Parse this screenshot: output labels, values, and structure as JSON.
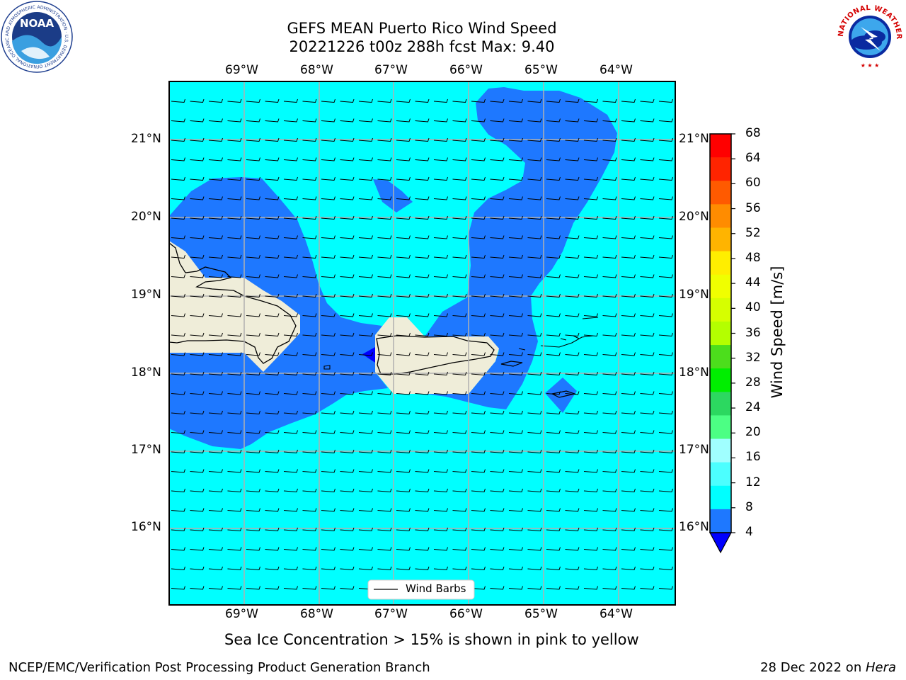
{
  "header": {
    "title_line1": "GEFS MEAN Puerto Rico Wind Speed",
    "title_line2": "20221226 t00z 288h fcst   Max: 9.40"
  },
  "logos": {
    "noaa": {
      "center_text": "NOAA",
      "ring_text": "NATIONAL OCEANIC AND ATMOSPHERIC ADMINISTRATION · U.S. DEPARTMENT OF COMMERCE"
    },
    "nws": {
      "ring_text": "NATIONAL WEATHER SERVICE"
    }
  },
  "map": {
    "lon_labels": [
      "69°W",
      "68°W",
      "67°W",
      "66°W",
      "65°W",
      "64°W"
    ],
    "lat_labels": [
      "21°N",
      "20°N",
      "19°N",
      "18°N",
      "17°N",
      "16°N"
    ],
    "legend_label": "Wind Barbs",
    "colors": {
      "ocean_8_12": "#00ffff",
      "wind_4_8": "#1e78ff",
      "wind_below_4": "#0000ff",
      "land": "#efedd9",
      "grid": "#b0b0b0"
    }
  },
  "colorbar": {
    "label": "Wind Speed [m/s]",
    "tick_labels": [
      "68",
      "64",
      "60",
      "56",
      "52",
      "48",
      "44",
      "40",
      "36",
      "32",
      "28",
      "24",
      "20",
      "16",
      "12",
      "8",
      "4"
    ],
    "bins": [
      {
        "range": "64-68",
        "color": "#ff0000"
      },
      {
        "range": "60-64",
        "color": "#ff2400"
      },
      {
        "range": "56-60",
        "color": "#ff5a00"
      },
      {
        "range": "52-56",
        "color": "#ff8c00"
      },
      {
        "range": "48-52",
        "color": "#ffb400"
      },
      {
        "range": "44-48",
        "color": "#ffee00"
      },
      {
        "range": "40-44",
        "color": "#f0ff00"
      },
      {
        "range": "36-40",
        "color": "#d6ff00"
      },
      {
        "range": "32-36",
        "color": "#b4ff00"
      },
      {
        "range": "28-32",
        "color": "#4cde1c"
      },
      {
        "range": "24-28",
        "color": "#00ee00"
      },
      {
        "range": "20-24",
        "color": "#2cd860"
      },
      {
        "range": "16-20",
        "color": "#4cff84"
      },
      {
        "range": "12-16",
        "color": "#a0ffff"
      },
      {
        "range": "8-12",
        "color": "#4cffff"
      },
      {
        "range": "4-8",
        "color": "#00ffff"
      },
      {
        "range": "0-4",
        "color": "#1e78ff"
      }
    ],
    "extend_min_color": "#0000ff"
  },
  "caption": "Sea Ice Concentration > 15% is shown in pink to yellow",
  "footer": {
    "left": "NCEP/EMC/Verification Post Processing Product Generation Branch",
    "right_prefix": "28 Dec 2022 on ",
    "right_host": "Hera"
  }
}
